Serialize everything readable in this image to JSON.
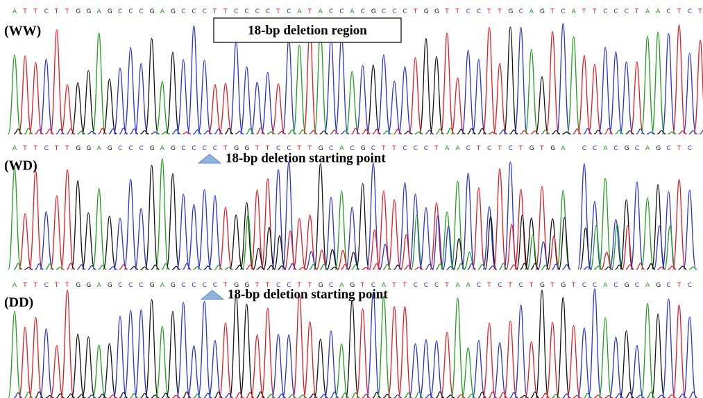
{
  "panels": [
    {
      "label": "(WW)",
      "sequence": "ATTCTTGGAGCCCGAGCCCTTCCCCTCATACCACGCCCTGGTTCCTTGCAGTCATTCCCTAACTCT",
      "annotation": "18-bp deletion region"
    },
    {
      "label": "(WD)",
      "sequence": "ATTCTTGGAGCCCGAGCCCCTGGTTCCTTGCACGCTTCCCTAACTCTCTGTGA CCACGCAGCTC",
      "annotation": "18-bp deletion starting point"
    },
    {
      "label": "(DD)",
      "sequence": "ATTCTTGGAGCCCGAGCCCCTGGTTCCTTGCAGTCATTCCCTAACTCTCTGTGTCCACGCAGCTC",
      "annotation": "18-bp deletion starting point"
    }
  ]
}
